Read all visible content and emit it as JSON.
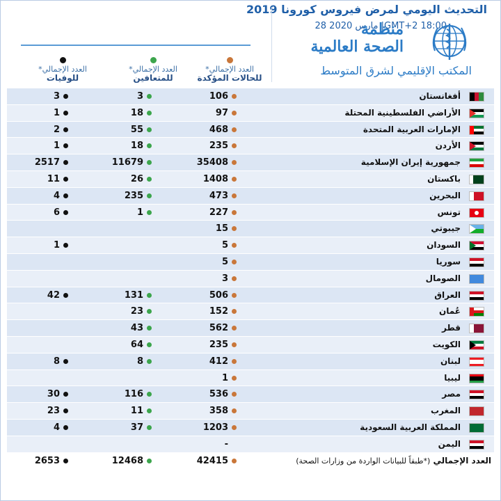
{
  "header": {
    "update_title": "التحديث اليومي لمرض فيروس كورونا 2019",
    "update_date": "28 مارس 2020 |GMT+2 18:00",
    "org_name_line1": "منظمة",
    "org_name_line2": "الصحة العالمية",
    "regional_office": "المكتب الإقليمي لشرق المتوسط"
  },
  "columns": {
    "confirmed": {
      "line1": "العدد الإجمالي*",
      "line2": "للحالات المؤكدة",
      "color": "#c9773a"
    },
    "recovered": {
      "line1": "العدد الإجمالي*",
      "line2": "للمتعافين",
      "color": "#3ca54c"
    },
    "deaths": {
      "line1": "العدد الإجمالي*",
      "line2": "للوفيات",
      "color": "#111111"
    }
  },
  "rows": [
    {
      "country": "أفغانستان",
      "flag": "afghanistan-flag",
      "confirmed": "106",
      "recovered": "3",
      "deaths": "3"
    },
    {
      "country": "الأراضي الفلسطينية المحتلة",
      "flag": "palestine-flag",
      "confirmed": "97",
      "recovered": "18",
      "deaths": "1"
    },
    {
      "country": "الإمارات العربية المتحدة",
      "flag": "uae-flag",
      "confirmed": "468",
      "recovered": "55",
      "deaths": "2"
    },
    {
      "country": "الأردن",
      "flag": "jordan-flag",
      "confirmed": "235",
      "recovered": "18",
      "deaths": "1"
    },
    {
      "country": "جمهورية إيران الإسلامية",
      "flag": "iran-flag",
      "confirmed": "35408",
      "recovered": "11679",
      "deaths": "2517"
    },
    {
      "country": "باكستان",
      "flag": "pakistan-flag",
      "confirmed": "1408",
      "recovered": "26",
      "deaths": "11"
    },
    {
      "country": "البحرين",
      "flag": "bahrain-flag",
      "confirmed": "473",
      "recovered": "235",
      "deaths": "4"
    },
    {
      "country": "تونس",
      "flag": "tunisia-flag",
      "confirmed": "227",
      "recovered": "1",
      "deaths": "6"
    },
    {
      "country": "جيبوتي",
      "flag": "djibouti-flag",
      "confirmed": "15",
      "recovered": "",
      "deaths": ""
    },
    {
      "country": "السودان",
      "flag": "sudan-flag",
      "confirmed": "5",
      "recovered": "",
      "deaths": "1"
    },
    {
      "country": "سوريا",
      "flag": "syria-flag",
      "confirmed": "5",
      "recovered": "",
      "deaths": ""
    },
    {
      "country": "الصومال",
      "flag": "somalia-flag",
      "confirmed": "3",
      "recovered": "",
      "deaths": ""
    },
    {
      "country": "العراق",
      "flag": "iraq-flag",
      "confirmed": "506",
      "recovered": "131",
      "deaths": "42"
    },
    {
      "country": "عُمان",
      "flag": "oman-flag",
      "confirmed": "152",
      "recovered": "23",
      "deaths": ""
    },
    {
      "country": "قطر",
      "flag": "qatar-flag",
      "confirmed": "562",
      "recovered": "43",
      "deaths": ""
    },
    {
      "country": "الكويت",
      "flag": "kuwait-flag",
      "confirmed": "235",
      "recovered": "64",
      "deaths": ""
    },
    {
      "country": "لبنان",
      "flag": "lebanon-flag",
      "confirmed": "412",
      "recovered": "8",
      "deaths": "8"
    },
    {
      "country": "ليبيا",
      "flag": "libya-flag",
      "confirmed": "1",
      "recovered": "",
      "deaths": ""
    },
    {
      "country": "مصر",
      "flag": "egypt-flag",
      "confirmed": "536",
      "recovered": "116",
      "deaths": "30"
    },
    {
      "country": "المغرب",
      "flag": "morocco-flag",
      "confirmed": "358",
      "recovered": "11",
      "deaths": "23"
    },
    {
      "country": "المملكة العربية السعودية",
      "flag": "saudi-arabia-flag",
      "confirmed": "1203",
      "recovered": "37",
      "deaths": "4"
    },
    {
      "country": "اليمن",
      "flag": "yemen-flag",
      "confirmed": "-",
      "recovered": "",
      "deaths": ""
    }
  ],
  "total": {
    "label": "العدد الإجمالي",
    "note": "(*طبقاً للبيانات الواردة من وزارات الصحة)",
    "confirmed": "42415",
    "recovered": "12468",
    "deaths": "2653"
  }
}
